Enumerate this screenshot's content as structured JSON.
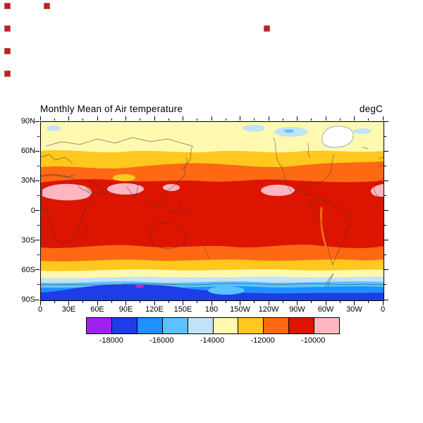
{
  "page": {
    "background": "#FFFFFF"
  },
  "artifacts": {
    "marker_color": "#C41E1E",
    "marker_size": 7,
    "marker_positions": [
      [
        7,
        5
      ],
      [
        63,
        5
      ],
      [
        7,
        37
      ],
      [
        375,
        37
      ],
      [
        7,
        69
      ],
      [
        7,
        101
      ]
    ]
  },
  "chart_data": {
    "type": "heatmap",
    "title": "Monthly Mean of Air temperature",
    "units_label": "degC",
    "x_axis": {
      "tick_labels": [
        "0",
        "30E",
        "60E",
        "90E",
        "120E",
        "150E",
        "180",
        "150W",
        "120W",
        "90W",
        "60W",
        "30W",
        "0"
      ],
      "range": "0E eastward around the globe back to 0E"
    },
    "y_axis": {
      "tick_labels": [
        "90N",
        "60N",
        "30N",
        "0",
        "30S",
        "60S",
        "90S"
      ],
      "range": "90N to 90S"
    },
    "colorbar": {
      "orientation": "horizontal",
      "levels": [
        -18000,
        -17000,
        -16000,
        -15000,
        -14000,
        -13000,
        -12000,
        -11000,
        -10000
      ],
      "boundary_labels": [
        "-18000",
        "-16000",
        "-14000",
        "-12000",
        "-10000"
      ],
      "cell_colors": [
        "#A020F0",
        "#1C3DE8",
        "#1E90FF",
        "#5BC2FF",
        "#C2E2F7",
        "#FFF9B0",
        "#FFC81E",
        "#FF6914",
        "#DC1400",
        "#FFB6C1"
      ]
    },
    "colors": {
      "purple": "#A020F0",
      "royal_blue": "#1C3DE8",
      "blue": "#1E90FF",
      "light_blue": "#5BC2FF",
      "pale_blue": "#C2E2F7",
      "pale_yellow": "#FFF9B0",
      "gold": "#FFC81E",
      "orange": "#FF6914",
      "red": "#DC1400",
      "pink": "#FFB6C1",
      "white": "#FFFFFF",
      "magenta_spot": "#BE28C8"
    },
    "zonal_mean_estimates": [
      {
        "lat": "85N",
        "value": -14500
      },
      {
        "lat": "75N",
        "value": -13600
      },
      {
        "lat": "65N",
        "value": -12700
      },
      {
        "lat": "55N",
        "value": -11900
      },
      {
        "lat": "45N",
        "value": -11300
      },
      {
        "lat": "35N",
        "value": -10700
      },
      {
        "lat": "25N",
        "value": -10100
      },
      {
        "lat": "15N",
        "value": -10200
      },
      {
        "lat": "0",
        "value": -10400
      },
      {
        "lat": "15S",
        "value": -10500
      },
      {
        "lat": "30S",
        "value": -11000
      },
      {
        "lat": "40S",
        "value": -11600
      },
      {
        "lat": "50S",
        "value": -12400
      },
      {
        "lat": "60S",
        "value": -13400
      },
      {
        "lat": "68S",
        "value": -14400
      },
      {
        "lat": "75S",
        "value": -15600
      },
      {
        "lat": "82S",
        "value": -16800
      },
      {
        "lat": "88S",
        "value": -17600
      }
    ],
    "hot_features": [
      "Pink (> -10000) patches over North Africa / Arabia",
      "Pink patch over South Asia",
      "Pink patch over Central America / Caribbean",
      "Pink patch at west-African map edge"
    ],
    "cold_features": [
      "White out-of-scale Greenland ice sheet",
      "Pale-blue Arctic archipelago patches",
      "Gold Tibetan-Plateau cool patch",
      "Deep-blue Antarctic interior with small magenta minimum"
    ]
  }
}
